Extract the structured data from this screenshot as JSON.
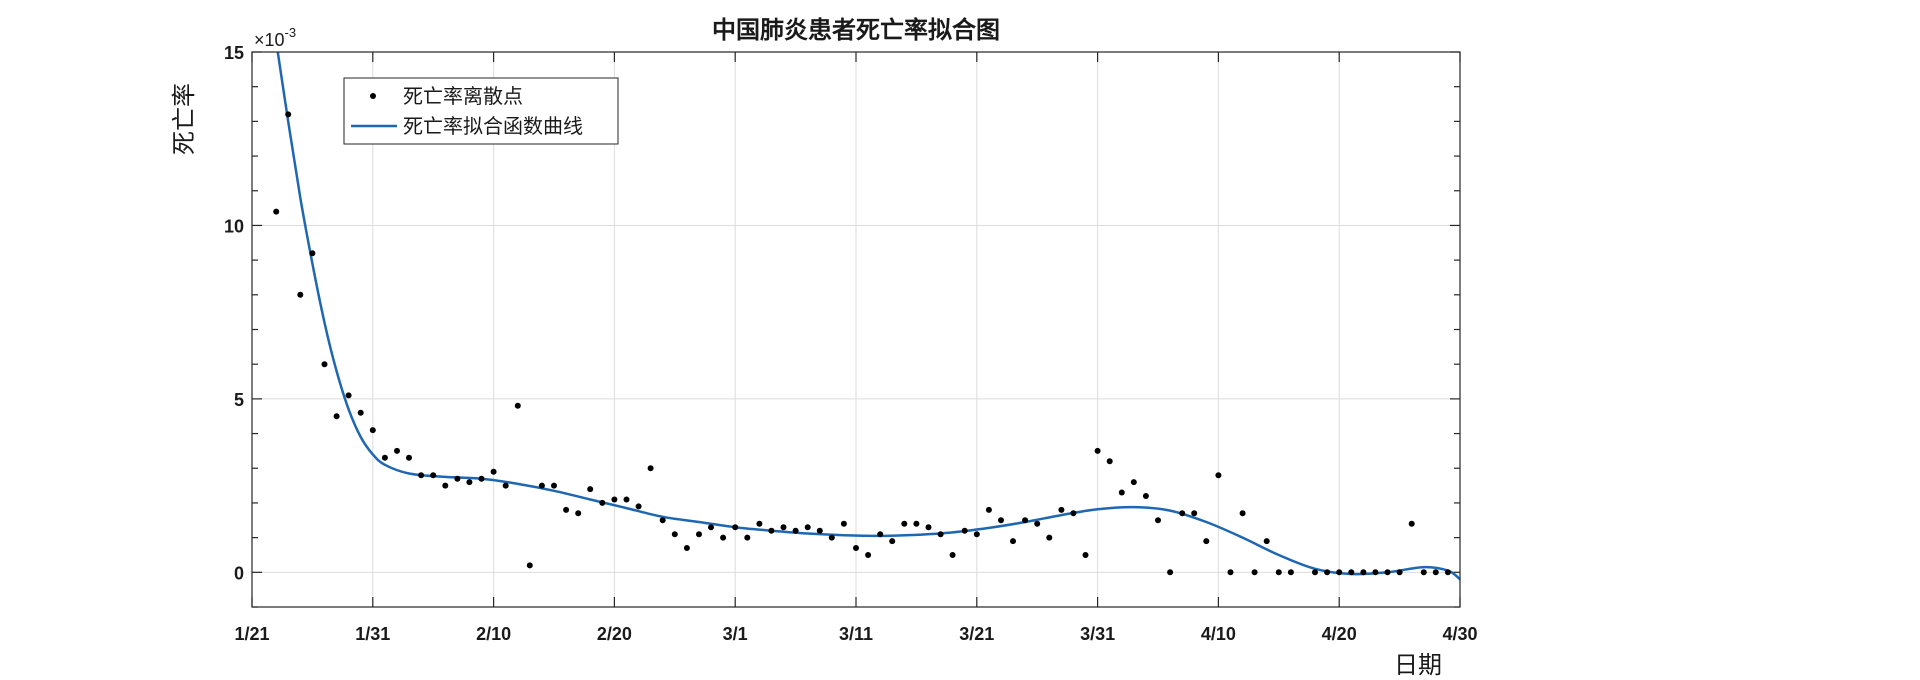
{
  "chart_data": {
    "type": "scatter+line",
    "title": "中国肺炎患者死亡率拟合图",
    "xlabel": "日期",
    "ylabel": "死亡率",
    "y_exponent_prefix": "×10",
    "y_exponent_power": "-3",
    "xlim": [
      "2020-01-21",
      "2020-04-30"
    ],
    "ylim": [
      -1,
      15
    ],
    "x_ticks": [
      {
        "date": "2020-01-21",
        "label": "1/21"
      },
      {
        "date": "2020-01-31",
        "label": "1/31"
      },
      {
        "date": "2020-02-10",
        "label": "2/10"
      },
      {
        "date": "2020-02-20",
        "label": "2/20"
      },
      {
        "date": "2020-03-01",
        "label": "3/1"
      },
      {
        "date": "2020-03-11",
        "label": "3/11"
      },
      {
        "date": "2020-03-21",
        "label": "3/21"
      },
      {
        "date": "2020-03-31",
        "label": "3/31"
      },
      {
        "date": "2020-04-10",
        "label": "4/10"
      },
      {
        "date": "2020-04-20",
        "label": "4/20"
      },
      {
        "date": "2020-04-30",
        "label": "4/30"
      }
    ],
    "y_ticks": [
      {
        "value": 0,
        "label": "0"
      },
      {
        "value": 5,
        "label": "5"
      },
      {
        "value": 10,
        "label": "10"
      },
      {
        "value": 15,
        "label": "15"
      }
    ],
    "grid": true,
    "legend": {
      "placement": "top-left"
    },
    "series": [
      {
        "name": "死亡率离散点",
        "kind": "scatter",
        "color": "#000000",
        "points": [
          [
            "2020-01-23",
            10.4
          ],
          [
            "2020-01-24",
            13.2
          ],
          [
            "2020-01-25",
            8.0
          ],
          [
            "2020-01-26",
            9.2
          ],
          [
            "2020-01-27",
            6.0
          ],
          [
            "2020-01-28",
            4.5
          ],
          [
            "2020-01-29",
            5.1
          ],
          [
            "2020-01-30",
            4.6
          ],
          [
            "2020-01-31",
            4.1
          ],
          [
            "2020-02-01",
            3.3
          ],
          [
            "2020-02-02",
            3.5
          ],
          [
            "2020-02-03",
            3.3
          ],
          [
            "2020-02-04",
            2.8
          ],
          [
            "2020-02-05",
            2.8
          ],
          [
            "2020-02-06",
            2.5
          ],
          [
            "2020-02-07",
            2.7
          ],
          [
            "2020-02-08",
            2.6
          ],
          [
            "2020-02-09",
            2.7
          ],
          [
            "2020-02-10",
            2.9
          ],
          [
            "2020-02-11",
            2.5
          ],
          [
            "2020-02-12",
            4.8
          ],
          [
            "2020-02-13",
            0.2
          ],
          [
            "2020-02-14",
            2.5
          ],
          [
            "2020-02-15",
            2.5
          ],
          [
            "2020-02-16",
            1.8
          ],
          [
            "2020-02-17",
            1.7
          ],
          [
            "2020-02-18",
            2.4
          ],
          [
            "2020-02-19",
            2.0
          ],
          [
            "2020-02-20",
            2.1
          ],
          [
            "2020-02-21",
            2.1
          ],
          [
            "2020-02-22",
            1.9
          ],
          [
            "2020-02-23",
            3.0
          ],
          [
            "2020-02-24",
            1.5
          ],
          [
            "2020-02-25",
            1.1
          ],
          [
            "2020-02-26",
            0.7
          ],
          [
            "2020-02-27",
            1.1
          ],
          [
            "2020-02-28",
            1.3
          ],
          [
            "2020-02-29",
            1.0
          ],
          [
            "2020-03-01",
            1.3
          ],
          [
            "2020-03-02",
            1.0
          ],
          [
            "2020-03-03",
            1.4
          ],
          [
            "2020-03-04",
            1.2
          ],
          [
            "2020-03-05",
            1.3
          ],
          [
            "2020-03-06",
            1.2
          ],
          [
            "2020-03-07",
            1.3
          ],
          [
            "2020-03-08",
            1.2
          ],
          [
            "2020-03-09",
            1.0
          ],
          [
            "2020-03-10",
            1.4
          ],
          [
            "2020-03-11",
            0.7
          ],
          [
            "2020-03-12",
            0.5
          ],
          [
            "2020-03-13",
            1.1
          ],
          [
            "2020-03-14",
            0.9
          ],
          [
            "2020-03-15",
            1.4
          ],
          [
            "2020-03-16",
            1.4
          ],
          [
            "2020-03-17",
            1.3
          ],
          [
            "2020-03-18",
            1.1
          ],
          [
            "2020-03-19",
            0.5
          ],
          [
            "2020-03-20",
            1.2
          ],
          [
            "2020-03-21",
            1.1
          ],
          [
            "2020-03-22",
            1.8
          ],
          [
            "2020-03-23",
            1.5
          ],
          [
            "2020-03-24",
            0.9
          ],
          [
            "2020-03-25",
            1.5
          ],
          [
            "2020-03-26",
            1.4
          ],
          [
            "2020-03-27",
            1.0
          ],
          [
            "2020-03-28",
            1.8
          ],
          [
            "2020-03-29",
            1.7
          ],
          [
            "2020-03-30",
            0.5
          ],
          [
            "2020-03-31",
            3.5
          ],
          [
            "2020-04-01",
            3.2
          ],
          [
            "2020-04-02",
            2.3
          ],
          [
            "2020-04-03",
            2.6
          ],
          [
            "2020-04-04",
            2.2
          ],
          [
            "2020-04-05",
            1.5
          ],
          [
            "2020-04-06",
            0.0
          ],
          [
            "2020-04-07",
            1.7
          ],
          [
            "2020-04-08",
            1.7
          ],
          [
            "2020-04-09",
            0.9
          ],
          [
            "2020-04-10",
            2.8
          ],
          [
            "2020-04-11",
            0.0
          ],
          [
            "2020-04-12",
            1.7
          ],
          [
            "2020-04-13",
            0.0
          ],
          [
            "2020-04-14",
            0.9
          ],
          [
            "2020-04-15",
            0.0
          ],
          [
            "2020-04-16",
            0.0
          ],
          [
            "2020-04-18",
            0.0
          ],
          [
            "2020-04-19",
            0.0
          ],
          [
            "2020-04-20",
            0.0
          ],
          [
            "2020-04-21",
            0.0
          ],
          [
            "2020-04-22",
            0.0
          ],
          [
            "2020-04-23",
            0.0
          ],
          [
            "2020-04-24",
            0.0
          ],
          [
            "2020-04-25",
            0.0
          ],
          [
            "2020-04-26",
            1.4
          ],
          [
            "2020-04-27",
            0.0
          ],
          [
            "2020-04-28",
            0.0
          ],
          [
            "2020-04-29",
            0.0
          ]
        ]
      },
      {
        "name": "死亡率拟合函数曲线",
        "kind": "line",
        "color": "#1f67b1",
        "points": [
          [
            "2020-01-23",
            15.3
          ],
          [
            "2020-01-24",
            13.0
          ],
          [
            "2020-01-25",
            10.8
          ],
          [
            "2020-01-26",
            8.9
          ],
          [
            "2020-01-27",
            7.2
          ],
          [
            "2020-01-28",
            5.8
          ],
          [
            "2020-01-29",
            4.7
          ],
          [
            "2020-01-30",
            3.9
          ],
          [
            "2020-01-31",
            3.4
          ],
          [
            "2020-02-01",
            3.1
          ],
          [
            "2020-02-03",
            2.85
          ],
          [
            "2020-02-06",
            2.75
          ],
          [
            "2020-02-09",
            2.7
          ],
          [
            "2020-02-12",
            2.55
          ],
          [
            "2020-02-15",
            2.35
          ],
          [
            "2020-02-18",
            2.1
          ],
          [
            "2020-02-21",
            1.85
          ],
          [
            "2020-02-24",
            1.6
          ],
          [
            "2020-02-27",
            1.45
          ],
          [
            "2020-03-01",
            1.3
          ],
          [
            "2020-03-04",
            1.2
          ],
          [
            "2020-03-07",
            1.12
          ],
          [
            "2020-03-10",
            1.07
          ],
          [
            "2020-03-13",
            1.05
          ],
          [
            "2020-03-16",
            1.08
          ],
          [
            "2020-03-19",
            1.15
          ],
          [
            "2020-03-22",
            1.28
          ],
          [
            "2020-03-25",
            1.45
          ],
          [
            "2020-03-28",
            1.65
          ],
          [
            "2020-03-31",
            1.82
          ],
          [
            "2020-04-03",
            1.88
          ],
          [
            "2020-04-06",
            1.78
          ],
          [
            "2020-04-09",
            1.45
          ],
          [
            "2020-04-12",
            1.0
          ],
          [
            "2020-04-15",
            0.5
          ],
          [
            "2020-04-18",
            0.1
          ],
          [
            "2020-04-21",
            -0.05
          ],
          [
            "2020-04-24",
            0.0
          ],
          [
            "2020-04-27",
            0.15
          ],
          [
            "2020-04-29",
            0.05
          ],
          [
            "2020-04-30",
            -0.2
          ]
        ]
      }
    ]
  }
}
